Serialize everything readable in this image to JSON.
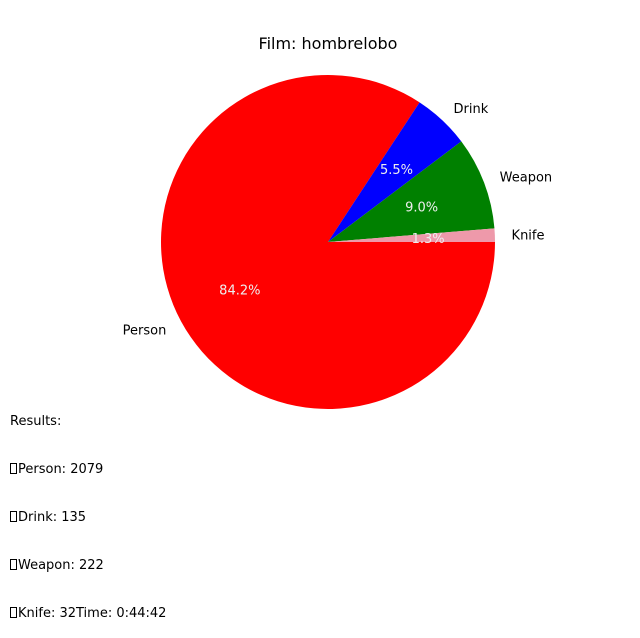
{
  "chart_data": {
    "type": "pie",
    "title": "Film: hombrelobo",
    "slices": [
      {
        "label": "Person",
        "value": 2079,
        "pct_label": "84.2%",
        "color": "#ff0000",
        "pct_color": "#eeeeee"
      },
      {
        "label": "Drink",
        "value": 135,
        "pct_label": "5.5%",
        "color": "#0000ff",
        "pct_color": "#eeeeee"
      },
      {
        "label": "Weapon",
        "value": 222,
        "pct_label": "9.0%",
        "color": "#008000",
        "pct_color": "#eeeeee"
      },
      {
        "label": "Knife",
        "value": 32,
        "pct_label": "1.3%",
        "color": "#ee99aa",
        "pct_color": "#eeeeee"
      }
    ],
    "start_angle_deg": 0,
    "direction": "clockwise"
  },
  "results": {
    "heading": "Results:",
    "lines": [
      "Person: 2079",
      "Drink: 135",
      "Weapon: 222",
      "Knife: 32"
    ],
    "time": "Time: 0:44:42"
  }
}
